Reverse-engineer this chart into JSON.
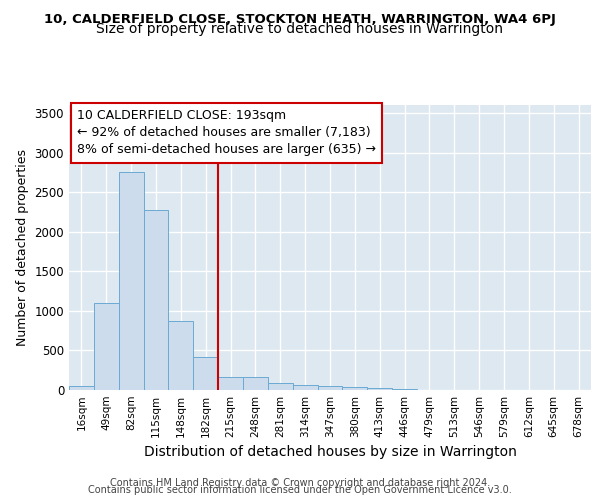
{
  "title1": "10, CALDERFIELD CLOSE, STOCKTON HEATH, WARRINGTON, WA4 6PJ",
  "title2": "Size of property relative to detached houses in Warrington",
  "xlabel": "Distribution of detached houses by size in Warrington",
  "ylabel": "Number of detached properties",
  "categories": [
    "16sqm",
    "49sqm",
    "82sqm",
    "115sqm",
    "148sqm",
    "182sqm",
    "215sqm",
    "248sqm",
    "281sqm",
    "314sqm",
    "347sqm",
    "380sqm",
    "413sqm",
    "446sqm",
    "479sqm",
    "513sqm",
    "546sqm",
    "579sqm",
    "612sqm",
    "645sqm",
    "678sqm"
  ],
  "values": [
    50,
    1100,
    2750,
    2280,
    870,
    420,
    170,
    165,
    90,
    60,
    50,
    35,
    30,
    15,
    0,
    0,
    0,
    0,
    0,
    0,
    0
  ],
  "bar_color": "#ccdcec",
  "bar_edge_color": "#6aaad4",
  "vline_x_index": 5,
  "vline_color": "#cc0000",
  "annotation_text": "10 CALDERFIELD CLOSE: 193sqm\n← 92% of detached houses are smaller (7,183)\n8% of semi-detached houses are larger (635) →",
  "annotation_box_edgecolor": "#cc0000",
  "ylim": [
    0,
    3600
  ],
  "yticks": [
    0,
    500,
    1000,
    1500,
    2000,
    2500,
    3000,
    3500
  ],
  "background_color": "#dde8f0",
  "grid_color": "#ffffff",
  "footer1": "Contains HM Land Registry data © Crown copyright and database right 2024.",
  "footer2": "Contains public sector information licensed under the Open Government Licence v3.0.",
  "title1_fontsize": 9.5,
  "title2_fontsize": 10,
  "xlabel_fontsize": 10,
  "ylabel_fontsize": 9,
  "annotation_fontsize": 9,
  "footer_fontsize": 7
}
